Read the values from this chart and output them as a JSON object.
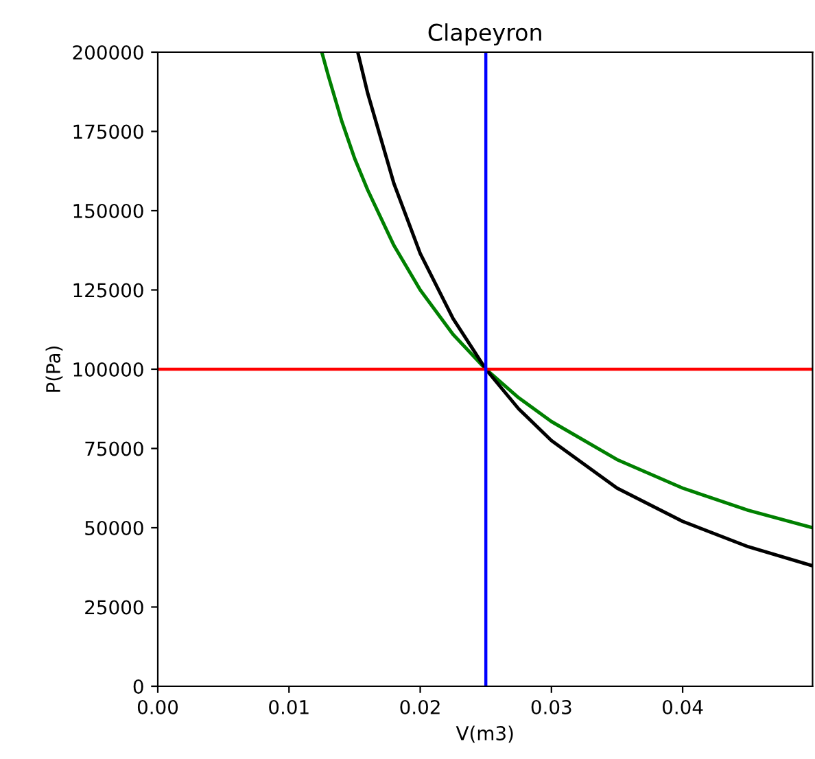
{
  "chart_data": {
    "type": "line",
    "title": "Clapeyron",
    "xlabel": "V(m3)",
    "ylabel": "P(Pa)",
    "series": [
      {
        "color": "#008000",
        "x": [
          0.0125,
          0.013,
          0.014,
          0.015,
          0.016,
          0.018,
          0.02,
          0.0225,
          0.025,
          0.0275,
          0.03,
          0.035,
          0.04,
          0.045,
          0.0499
        ],
        "values": [
          200000,
          192500,
          178500,
          166500,
          156500,
          139000,
          125000,
          111000,
          100000,
          91000,
          83500,
          71500,
          62500,
          55500,
          50000
        ]
      },
      {
        "color": "#000000",
        "x": [
          0.01524,
          0.016,
          0.018,
          0.02,
          0.0225,
          0.025,
          0.0275,
          0.03,
          0.035,
          0.04,
          0.045,
          0.0499
        ],
        "values": [
          200000,
          187000,
          158500,
          136500,
          116000,
          100000,
          87500,
          77500,
          62500,
          52000,
          44000,
          38000
        ]
      }
    ],
    "xlim": [
      0,
      0.0499
    ],
    "ylim": [
      0,
      200000
    ],
    "xticks": [
      {
        "value": 0,
        "label": "0.00"
      },
      {
        "value": 0.01,
        "label": "0.01"
      },
      {
        "value": 0.02,
        "label": "0.02"
      },
      {
        "value": 0.03,
        "label": "0.03"
      },
      {
        "value": 0.04,
        "label": "0.04"
      }
    ],
    "yticks": [
      0,
      25000,
      50000,
      75000,
      100000,
      125000,
      150000,
      175000,
      200000
    ],
    "ref_lines": [
      {
        "axis": "y",
        "value": 100000,
        "color": "#ff0000"
      },
      {
        "axis": "x",
        "value": 0.025,
        "color": "#0000ff"
      }
    ],
    "grid": false,
    "legend": false,
    "marker": "none",
    "line_style": "solid"
  }
}
